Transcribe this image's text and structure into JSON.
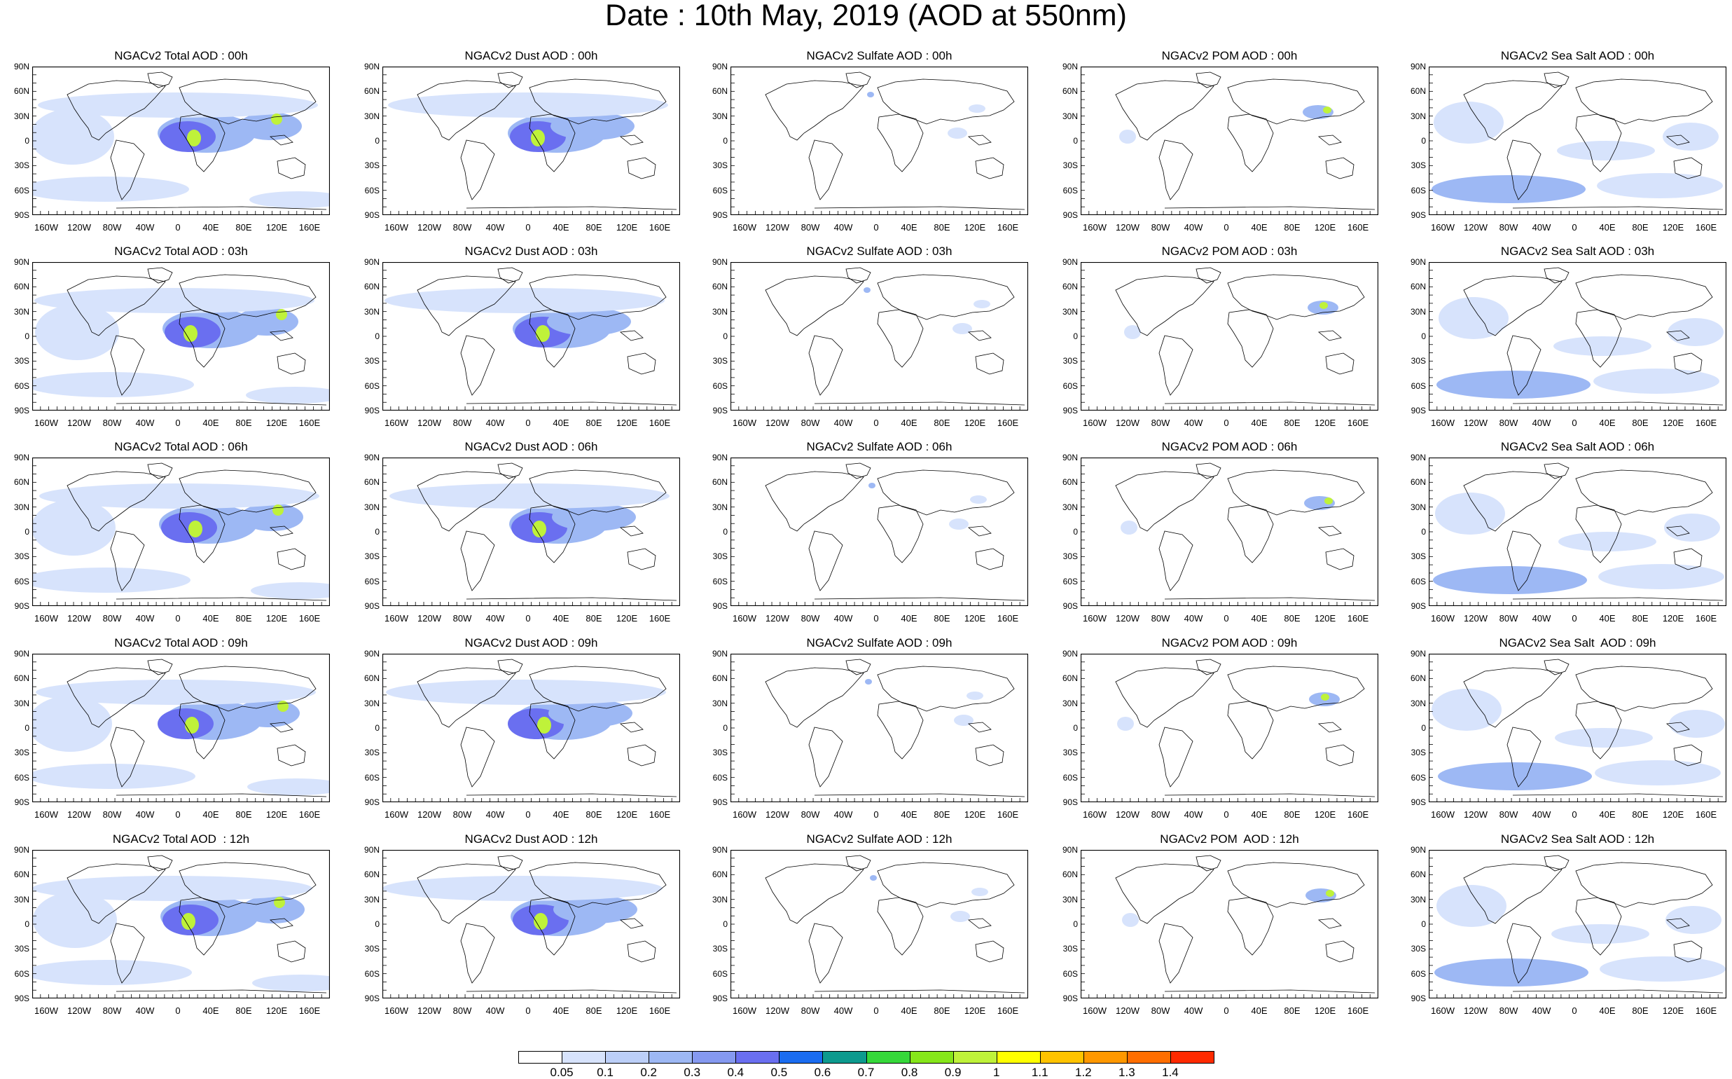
{
  "title": "Date : 10th May, 2019 (AOD at 550nm)",
  "panels": [
    [
      "NGACv2 Total AOD : 00h",
      "NGACv2 Dust AOD : 00h",
      "NGACv2 Sulfate AOD : 00h",
      "NGACv2 POM AOD : 00h",
      "NGACv2 Sea Salt AOD : 00h"
    ],
    [
      "NGACv2 Total AOD : 03h",
      "NGACv2 Dust AOD : 03h",
      "NGACv2 Sulfate AOD : 03h",
      "NGACv2 POM AOD : 03h",
      "NGACv2 Sea Salt AOD : 03h"
    ],
    [
      "NGACv2 Total AOD : 06h",
      "NGACv2 Dust AOD : 06h",
      "NGACv2 Sulfate AOD : 06h",
      "NGACv2 POM AOD : 06h",
      "NGACv2 Sea Salt AOD : 06h"
    ],
    [
      "NGACv2 Total AOD : 09h",
      "NGACv2 Dust AOD : 09h",
      "NGACv2 Sulfate AOD : 09h",
      "NGACv2 POM AOD : 09h",
      "NGACv2 Sea Salt  AOD : 09h"
    ],
    [
      "NGACv2 Total AOD  : 12h",
      "NGACv2 Dust AOD : 12h",
      "NGACv2 Sulfate AOD : 12h",
      "NGACv2 POM  AOD : 12h",
      "NGACv2 Sea Salt AOD : 12h"
    ]
  ],
  "species": [
    "total",
    "dust",
    "sulfate",
    "pom",
    "seasalt"
  ],
  "lat_ticks": [
    "90N",
    "60N",
    "30N",
    "0",
    "30S",
    "60S",
    "90S"
  ],
  "lon_ticks": [
    "160W",
    "120W",
    "80W",
    "40W",
    "0",
    "40E",
    "80E",
    "120E",
    "160E"
  ],
  "colorbar": {
    "labels": [
      "0.05",
      "0.1",
      "0.2",
      "0.3",
      "0.4",
      "0.5",
      "0.6",
      "0.7",
      "0.8",
      "0.9",
      "1",
      "1.1",
      "1.2",
      "1.3",
      "1.4"
    ],
    "colors": [
      "#ffffff",
      "#d7e3fc",
      "#bccff8",
      "#9db8f4",
      "#8599f0",
      "#6a6ff0",
      "#1a6cf0",
      "#0d9a8e",
      "#36d83a",
      "#86e61a",
      "#bff23a",
      "#ffff00",
      "#ffc300",
      "#ff9800",
      "#ff6e00",
      "#ff2a00"
    ]
  },
  "colors": {
    "coastline": "#000000",
    "aod_low": "#d7e3fc",
    "aod_mid": "#9db8f4",
    "aod_high": "#6a6ff0",
    "aod_peak": "#bff23a"
  }
}
